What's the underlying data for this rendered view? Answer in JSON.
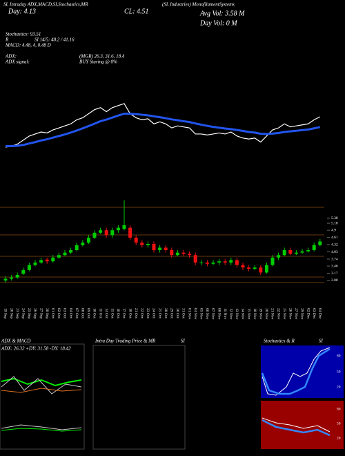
{
  "header": {
    "title": "SL Intraday ADX,MACD,SI,Stochastics,MR",
    "day": "Day: 4.13",
    "close": "CL: 4.51",
    "company": "(SL Industries) MonofilamentSystems",
    "avg_vol": "Avg Vol: 3.58  M",
    "day_vol": "Day Vol: 0  M",
    "stochastics": "Stochastics: 93.51",
    "r": "R",
    "si": "SI 14/5: 48.2 / 41.16",
    "macd": "MACD: 4.48, 4, 0.48  D",
    "adx": "ADX:",
    "mgr": "(MGR) 26.3, 31.6, 18.4",
    "adx_signal": "ADX  signal:",
    "buy": "BUY Staring @ 0%"
  },
  "panels": {
    "adx_title": "ADX  & MACD",
    "adx_values": "ADX: 26.32  +DY: 31.58  -DY: 18.42",
    "intraday_title": "Intra  Day Trading Price  & MR",
    "intraday_si": "SI",
    "stoch_title": "Stochastics  & R",
    "stoch_si": "SI",
    "stoch_ticks": [
      "80",
      "50",
      "20"
    ],
    "rsi_ticks": [
      "80",
      "50",
      "20"
    ]
  },
  "chart_data": [
    {
      "type": "line",
      "ylim": [
        2.03,
        6.12
      ],
      "series": [
        {
          "color": "#2255ee",
          "values": [
            3.0,
            3.0,
            3.02,
            3.06,
            3.13,
            3.2,
            3.28,
            3.34,
            3.42,
            3.5,
            3.58,
            3.67,
            3.77,
            3.88,
            3.99,
            4.11,
            4.23,
            4.31,
            4.41,
            4.51,
            4.6,
            4.6,
            4.58,
            4.55,
            4.52,
            4.47,
            4.43,
            4.38,
            4.32,
            4.28,
            4.23,
            4.19,
            4.12,
            4.06,
            4.0,
            3.95,
            3.91,
            3.87,
            3.84,
            3.8,
            3.75,
            3.7,
            3.67,
            3.61,
            3.6,
            3.62,
            3.65,
            3.7,
            3.73,
            3.76,
            3.79,
            3.82,
            3.88,
            3.94
          ]
        }
      ]
    },
    {
      "type": "candlestick",
      "ylim": [
        2.49,
        6.1
      ],
      "yticks": [
        5.38,
        5.18,
        4.9,
        4.61,
        4.32,
        4.03,
        3.74,
        3.46,
        3.17,
        2.88
      ],
      "categories": [
        "19 Sep",
        "20 Sep",
        "23 Sep",
        "24 Sep",
        "25 Sep",
        "26 Sep",
        "27 Sep",
        "30 Sep",
        "01 Oct",
        "02 Oct",
        "03 Oct",
        "04 Oct",
        "07 Oct",
        "08 Oct",
        "09 Oct",
        "10 Oct",
        "11 Oct",
        "14 Oct",
        "15 Oct",
        "16 Oct",
        "17 Oct",
        "18 Oct",
        "21 Oct",
        "22 Oct",
        "23 Oct",
        "24 Oct",
        "25 Oct",
        "28 Oct",
        "29 Oct",
        "30 Oct",
        "31 Oct",
        "01 Nov",
        "04 Nov",
        "05 Nov",
        "06 Nov",
        "07 Nov",
        "08 Nov",
        "11 Nov",
        "12 Nov",
        "13 Nov",
        "14 Nov",
        "15 Nov",
        "18 Nov",
        "19 Nov",
        "20 Nov",
        "21 Nov",
        "22 Nov",
        "25 Nov",
        "26 Nov",
        "27 Nov",
        "29 Nov",
        "02 Dec",
        "03 Dec",
        "04 Dec"
      ],
      "open": [
        2.88,
        2.95,
        3.0,
        3.15,
        3.3,
        3.5,
        3.6,
        3.72,
        3.65,
        3.8,
        3.9,
        4.0,
        4.1,
        4.3,
        4.4,
        4.6,
        4.8,
        4.9,
        4.7,
        4.9,
        4.95,
        5.0,
        4.6,
        4.4,
        4.3,
        4.35,
        4.1,
        4.2,
        4.1,
        3.9,
        4.0,
        3.95,
        3.9,
        3.6,
        3.6,
        3.55,
        3.6,
        3.65,
        3.6,
        3.7,
        3.5,
        3.4,
        3.35,
        3.4,
        3.2,
        3.5,
        3.8,
        3.9,
        4.1,
        3.95,
        4.0,
        4.05,
        4.1,
        4.3
      ],
      "high": [
        3.05,
        3.1,
        3.2,
        3.4,
        3.6,
        3.7,
        3.8,
        3.8,
        3.9,
        4.0,
        4.1,
        4.2,
        4.4,
        4.5,
        4.7,
        4.9,
        5.0,
        5.0,
        5.0,
        5.1,
        6.1,
        5.1,
        4.7,
        4.5,
        4.45,
        4.45,
        4.3,
        4.3,
        4.2,
        4.1,
        4.1,
        4.05,
        4.0,
        3.7,
        3.7,
        3.7,
        3.75,
        3.75,
        3.8,
        3.8,
        3.6,
        3.5,
        3.5,
        3.5,
        3.6,
        3.9,
        4.0,
        4.2,
        4.2,
        4.1,
        4.15,
        4.2,
        4.4,
        4.55
      ],
      "low": [
        2.8,
        2.88,
        2.95,
        3.1,
        3.25,
        3.45,
        3.55,
        3.55,
        3.6,
        3.75,
        3.85,
        3.95,
        4.05,
        4.25,
        4.35,
        4.55,
        4.75,
        4.6,
        4.6,
        4.8,
        4.9,
        4.5,
        4.3,
        4.2,
        4.2,
        4.0,
        4.0,
        4.0,
        3.8,
        3.85,
        3.85,
        3.8,
        3.5,
        3.5,
        3.45,
        3.5,
        3.5,
        3.5,
        3.5,
        3.4,
        3.3,
        3.25,
        3.3,
        3.1,
        3.15,
        3.45,
        3.7,
        3.85,
        3.9,
        3.9,
        3.95,
        4.0,
        4.05,
        4.25
      ],
      "close": [
        2.95,
        3.0,
        3.1,
        3.3,
        3.5,
        3.6,
        3.7,
        3.65,
        3.8,
        3.9,
        4.0,
        4.1,
        4.3,
        4.4,
        4.6,
        4.8,
        4.9,
        4.7,
        4.9,
        5.0,
        5.1,
        4.6,
        4.4,
        4.3,
        4.35,
        4.1,
        4.2,
        4.1,
        3.9,
        4.0,
        3.95,
        3.9,
        3.6,
        3.6,
        3.55,
        3.6,
        3.65,
        3.6,
        3.7,
        3.5,
        3.4,
        3.35,
        3.4,
        3.2,
        3.5,
        3.8,
        3.9,
        4.1,
        3.95,
        4.0,
        4.05,
        4.1,
        4.3,
        4.45
      ],
      "up_color": "#00cc00",
      "down_color": "#ee1111"
    }
  ]
}
